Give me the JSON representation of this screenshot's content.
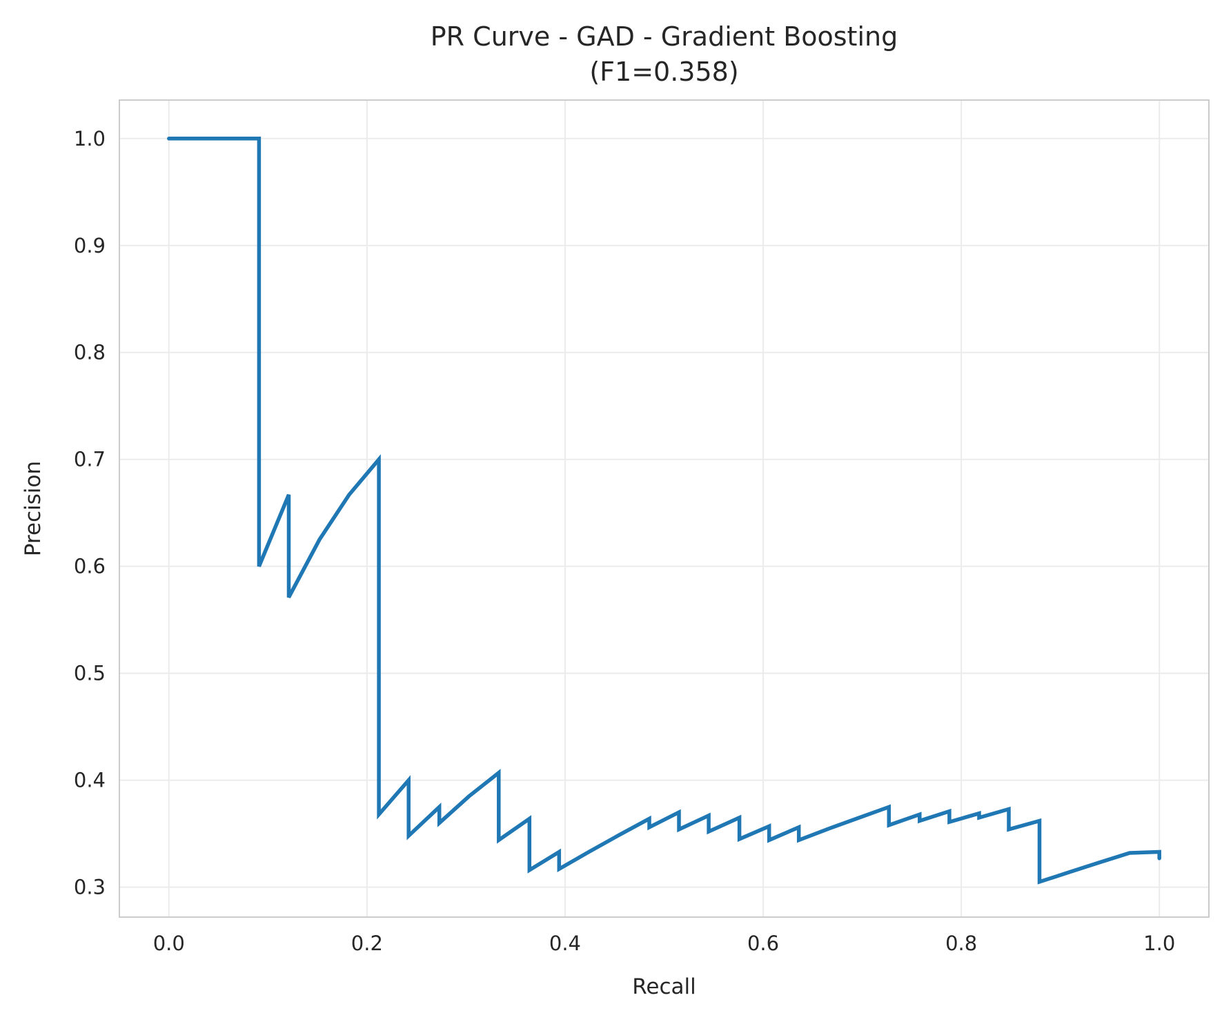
{
  "chart_data": {
    "type": "line",
    "title": "PR Curve - GAD - Gradient Boosting",
    "subtitle": "(F1=0.358)",
    "xlabel": "Recall",
    "ylabel": "Precision",
    "xlim": [
      -0.05,
      1.05
    ],
    "ylim": [
      0.272,
      1.036
    ],
    "grid": true,
    "x_ticks": [
      0.0,
      0.2,
      0.4,
      0.6,
      0.8,
      1.0
    ],
    "x_tick_labels": [
      "0.0",
      "0.2",
      "0.4",
      "0.6",
      "0.8",
      "1.0"
    ],
    "y_ticks": [
      0.3,
      0.4,
      0.5,
      0.6,
      0.7,
      0.8,
      0.9,
      1.0
    ],
    "y_tick_labels": [
      "0.3",
      "0.4",
      "0.5",
      "0.6",
      "0.7",
      "0.8",
      "0.9",
      "1.0"
    ],
    "series": [
      {
        "color": "#1f77b4",
        "x": [
          0.0,
          0.091,
          0.091,
          0.121,
          0.121,
          0.152,
          0.182,
          0.212,
          0.212,
          0.242,
          0.242,
          0.273,
          0.273,
          0.303,
          0.333,
          0.333,
          0.364,
          0.364,
          0.394,
          0.394,
          0.424,
          0.455,
          0.485,
          0.485,
          0.515,
          0.515,
          0.545,
          0.545,
          0.576,
          0.576,
          0.606,
          0.606,
          0.636,
          0.636,
          0.667,
          0.697,
          0.727,
          0.727,
          0.758,
          0.758,
          0.788,
          0.788,
          0.818,
          0.818,
          0.848,
          0.848,
          0.879,
          0.879,
          0.909,
          0.939,
          0.97,
          1.0,
          1.0
        ],
        "y": [
          1.0,
          1.0,
          0.6,
          0.667,
          0.571,
          0.625,
          0.667,
          0.7,
          0.368,
          0.4,
          0.348,
          0.375,
          0.36,
          0.385,
          0.407,
          0.344,
          0.364,
          0.316,
          0.333,
          0.317,
          0.333,
          0.349,
          0.364,
          0.356,
          0.37,
          0.354,
          0.367,
          0.352,
          0.365,
          0.345,
          0.357,
          0.344,
          0.356,
          0.344,
          0.355,
          0.365,
          0.375,
          0.358,
          0.368,
          0.362,
          0.371,
          0.361,
          0.369,
          0.365,
          0.373,
          0.354,
          0.362,
          0.305,
          0.314,
          0.323,
          0.332,
          0.333,
          0.327
        ]
      }
    ]
  }
}
